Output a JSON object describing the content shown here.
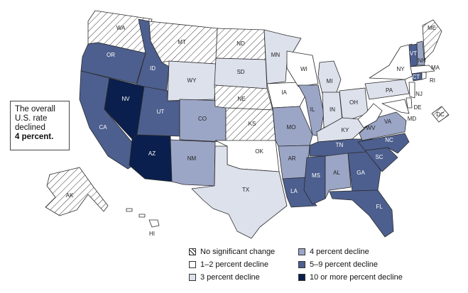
{
  "note": {
    "line1": "The overall",
    "line2": "U.S. rate",
    "line3": "declined",
    "line4": "4 percent."
  },
  "colors": {
    "nsc": "#ffffff",
    "d12": "#ffffff",
    "d3": "#dde1ec",
    "d4": "#9ba6c6",
    "d59": "#4d5f8f",
    "d10": "#0a1f4d"
  },
  "legend": [
    {
      "key": "nsc",
      "label": "No significant change"
    },
    {
      "key": "d12",
      "label": "1–2 percent decline"
    },
    {
      "key": "d3",
      "label": "3 percent decline"
    },
    {
      "key": "d4",
      "label": "4 percent decline"
    },
    {
      "key": "d59",
      "label": "5–9 percent decline"
    },
    {
      "key": "d10",
      "label": "10 or more percent decline"
    }
  ],
  "states": {
    "WA": "nsc",
    "OR": "d59",
    "CA": "d59",
    "ID": "d59",
    "NV": "d10",
    "AZ": "d10",
    "UT": "d59",
    "MT": "nsc",
    "WY": "d3",
    "CO": "d4",
    "NM": "d4",
    "ND": "nsc",
    "SD": "d3",
    "NE": "nsc",
    "KS": "nsc",
    "OK": "d12",
    "TX": "d3",
    "MN": "d3",
    "IA": "d12",
    "MO": "d4",
    "AR": "d4",
    "LA": "d59",
    "WI": "d12",
    "IL": "d4",
    "MS": "d59",
    "MI": "d3",
    "IN": "d3",
    "KY": "d3",
    "TN": "d59",
    "AL": "d4",
    "GA": "d59",
    "FL": "d59",
    "OH": "d3",
    "WV": "d12",
    "VA": "d4",
    "NC": "d59",
    "SC": "d59",
    "PA": "d3",
    "NY": "d12",
    "VT": "d59",
    "NH": "d4",
    "ME": "nsc",
    "MA": "d12",
    "RI": "d12",
    "CT": "d59",
    "NJ": "d12",
    "DE": "d12",
    "MD": "d12",
    "DC": "nsc",
    "AK": "nsc",
    "HI": "d12"
  }
}
